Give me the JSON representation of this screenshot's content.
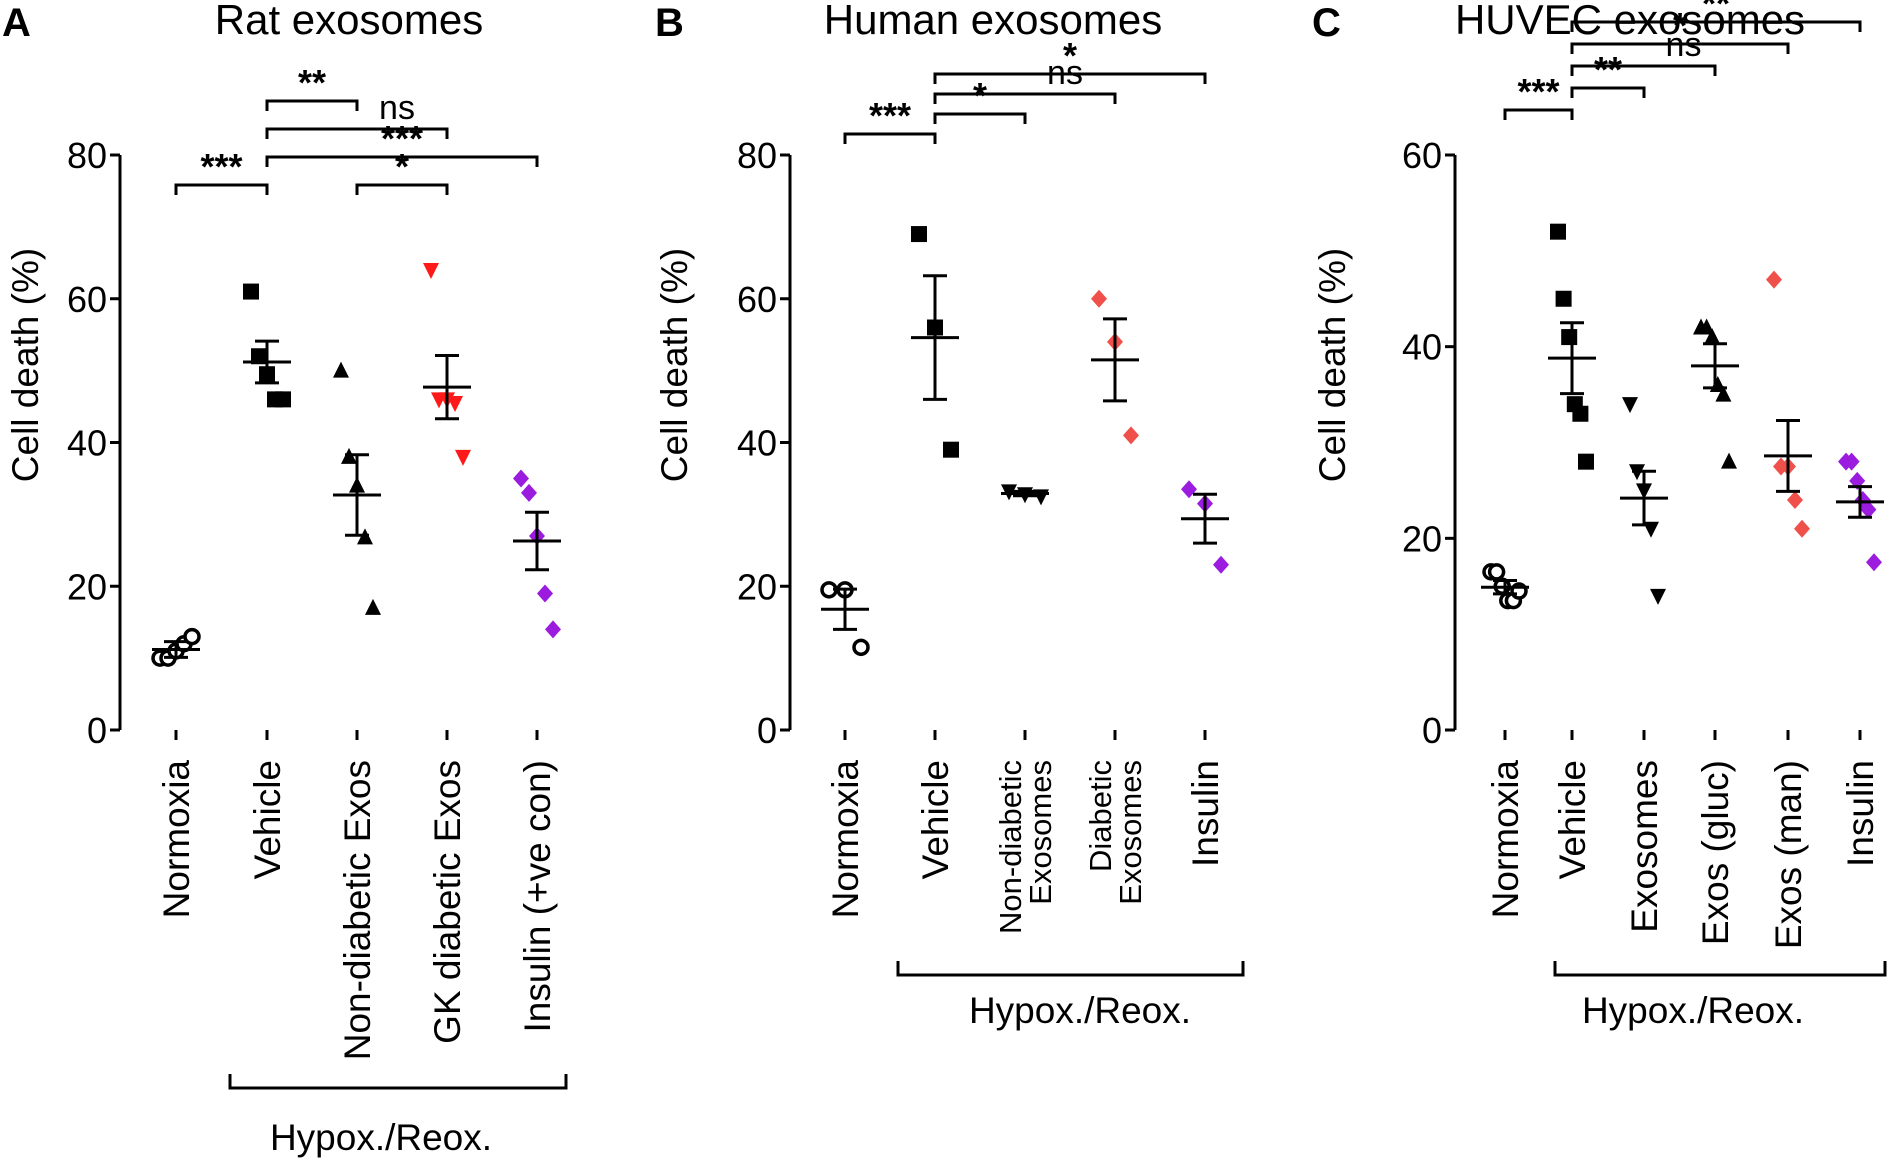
{
  "panels": [
    {
      "letter": "A",
      "title": "Rat exosomes",
      "ylabel": "Cell death (%)",
      "group_label": "Hypox./Reox.",
      "ticks": [
        "0",
        "20",
        "40",
        "60",
        "80"
      ]
    },
    {
      "letter": "B",
      "title": "Human exosomes",
      "ylabel": "Cell death (%)",
      "group_label": "Hypox./Reox.",
      "ticks": [
        "0",
        "20",
        "40",
        "60",
        "80"
      ]
    },
    {
      "letter": "C",
      "title": "HUVEC exosomes",
      "ylabel": "Cell death (%)",
      "group_label": "Hypox./Reox.",
      "ticks": [
        "0",
        "20",
        "40",
        "60"
      ]
    }
  ],
  "colors": {
    "black": "#000000",
    "red": "#ff1a1a",
    "salmon": "#f0504a",
    "purple": "#9b1bde"
  },
  "chart_data": [
    {
      "type": "scatter",
      "title": "Rat exosomes",
      "ylabel": "Cell death (%)",
      "ylim": [
        0,
        80
      ],
      "yticks": [
        0,
        20,
        40,
        60,
        80
      ],
      "categories": [
        "Normoxia",
        "Vehicle",
        "Non-diabetic Exos",
        "GK diabetic Exos",
        "Insulin (+ve con)"
      ],
      "group_label": "Hypox./Reox.",
      "group_span": [
        1,
        4
      ],
      "series": [
        {
          "category": "Normoxia",
          "marker": "circle-open",
          "color": "#000000",
          "points": [
            10,
            10,
            11,
            12,
            13
          ],
          "mean": 11.2,
          "sem_low": 10.1,
          "sem_high": 12.3
        },
        {
          "category": "Vehicle",
          "marker": "square",
          "color": "#000000",
          "points": [
            61,
            52,
            49.5,
            46,
            46
          ],
          "mean": 51.2,
          "sem_low": 48.3,
          "sem_high": 54.1
        },
        {
          "category": "Non-diabetic Exos",
          "marker": "triangle-up",
          "color": "#000000",
          "points": [
            50,
            38,
            34,
            26.8,
            17
          ],
          "mean": 32.7,
          "sem_low": 27.1,
          "sem_high": 38.3
        },
        {
          "category": "GK diabetic Exos",
          "marker": "triangle-down",
          "color": "#ff1a1a",
          "points": [
            64,
            46,
            46,
            45.5,
            38
          ],
          "mean": 47.7,
          "sem_low": 43.3,
          "sem_high": 52.1
        },
        {
          "category": "Insulin (+ve con)",
          "marker": "diamond",
          "color": "#9b1bde",
          "points": [
            35,
            33,
            27,
            19,
            14
          ],
          "mean": 26.3,
          "sem_low": 22.3,
          "sem_high": 30.3
        }
      ],
      "comparisons": [
        {
          "from": "Normoxia",
          "to": "Vehicle",
          "label": "***",
          "tier": 0
        },
        {
          "from": "Non-diabetic Exos",
          "to": "GK diabetic Exos",
          "label": "*",
          "tier": 0
        },
        {
          "from": "Vehicle",
          "to": "Insulin (+ve con)",
          "label": "***",
          "tier": 1
        },
        {
          "from": "Vehicle",
          "to": "GK diabetic Exos",
          "label": "ns",
          "tier": 2
        },
        {
          "from": "Vehicle",
          "to": "Non-diabetic Exos",
          "label": "**",
          "tier": 3
        }
      ]
    },
    {
      "type": "scatter",
      "title": "Human exosomes",
      "ylabel": "Cell death (%)",
      "ylim": [
        0,
        80
      ],
      "yticks": [
        0,
        20,
        40,
        60,
        80
      ],
      "categories": [
        "Normoxia",
        "Vehicle",
        "Non-diabetic Exosomes",
        "Diabetic Exosomes",
        "Insulin"
      ],
      "group_label": "Hypox./Reox.",
      "group_span": [
        1,
        4
      ],
      "series": [
        {
          "category": "Normoxia",
          "marker": "circle-open",
          "color": "#000000",
          "points": [
            19.5,
            19.5,
            11.5
          ],
          "mean": 16.8,
          "sem_low": 14,
          "sem_high": 19.6
        },
        {
          "category": "Vehicle",
          "marker": "square",
          "color": "#000000",
          "points": [
            69,
            56,
            39
          ],
          "mean": 54.6,
          "sem_low": 46,
          "sem_high": 63.2
        },
        {
          "category": "Non-diabetic Exosomes",
          "marker": "triangle-down",
          "color": "#000000",
          "points": [
            33.2,
            32.8,
            32.5
          ],
          "mean": 32.9,
          "sem_low": 32.6,
          "sem_high": 33.2
        },
        {
          "category": "Diabetic Exosomes",
          "marker": "diamond",
          "color": "#f0504a",
          "points": [
            60,
            54,
            41
          ],
          "mean": 51.5,
          "sem_low": 45.8,
          "sem_high": 57.2
        },
        {
          "category": "Insulin",
          "marker": "diamond",
          "color": "#9b1bde",
          "points": [
            33.5,
            31.5,
            23
          ],
          "mean": 29.4,
          "sem_low": 26,
          "sem_high": 32.8
        }
      ],
      "comparisons": [
        {
          "from": "Normoxia",
          "to": "Vehicle",
          "label": "***",
          "tier": 0
        },
        {
          "from": "Vehicle",
          "to": "Non-diabetic Exosomes",
          "label": "*",
          "tier": 1
        },
        {
          "from": "Vehicle",
          "to": "Diabetic Exosomes",
          "label": "ns",
          "tier": 2
        },
        {
          "from": "Vehicle",
          "to": "Insulin",
          "label": "*",
          "tier": 3
        }
      ]
    },
    {
      "type": "scatter",
      "title": "HUVEC exosomes",
      "ylabel": "Cell death (%)",
      "ylim": [
        0,
        60
      ],
      "yticks": [
        0,
        20,
        40,
        60
      ],
      "categories": [
        "Normoxia",
        "Vehicle",
        "Exosomes",
        "Exos (gluc)",
        "Exos (man)",
        "Insulin"
      ],
      "group_label": "Hypox./Reox.",
      "group_span": [
        1,
        5
      ],
      "series": [
        {
          "category": "Normoxia",
          "marker": "circle-open",
          "color": "#000000",
          "points": [
            16.5,
            16.5,
            15,
            13.5,
            13.5,
            14.5
          ],
          "mean": 14.9,
          "sem_low": 14.2,
          "sem_high": 15.6
        },
        {
          "category": "Vehicle",
          "marker": "square",
          "color": "#000000",
          "points": [
            52,
            45,
            41,
            34,
            33,
            28
          ],
          "mean": 38.8,
          "sem_low": 35.1,
          "sem_high": 42.5
        },
        {
          "category": "Exosomes",
          "marker": "triangle-down",
          "color": "#000000",
          "points": [
            34,
            27,
            25,
            21,
            14
          ],
          "mean": 24.2,
          "sem_low": 21.4,
          "sem_high": 27
        },
        {
          "category": "Exos (gluc)",
          "marker": "triangle-up",
          "color": "#000000",
          "points": [
            42,
            42,
            41,
            36,
            35,
            28
          ],
          "mean": 38,
          "sem_low": 35.7,
          "sem_high": 40.3
        },
        {
          "category": "Exos (man)",
          "marker": "diamond",
          "color": "#f0504a",
          "points": [
            47,
            27.5,
            27.5,
            24,
            21
          ],
          "mean": 28.6,
          "sem_low": 24.9,
          "sem_high": 32.3
        },
        {
          "category": "Insulin",
          "marker": "diamond",
          "color": "#9b1bde",
          "points": [
            28,
            28,
            26,
            24,
            23,
            17.5
          ],
          "mean": 23.8,
          "sem_low": 22.2,
          "sem_high": 25.4
        }
      ],
      "comparisons": [
        {
          "from": "Normoxia",
          "to": "Vehicle",
          "label": "***",
          "tier": 0
        },
        {
          "from": "Vehicle",
          "to": "Exosomes",
          "label": "**",
          "tier": 1
        },
        {
          "from": "Vehicle",
          "to": "Exos (gluc)",
          "label": "ns",
          "tier": 2
        },
        {
          "from": "Vehicle",
          "to": "Exos (man)",
          "label": "*",
          "tier": 3
        },
        {
          "from": "Vehicle",
          "to": "Insulin",
          "label": "**",
          "tier": 4
        }
      ]
    }
  ]
}
